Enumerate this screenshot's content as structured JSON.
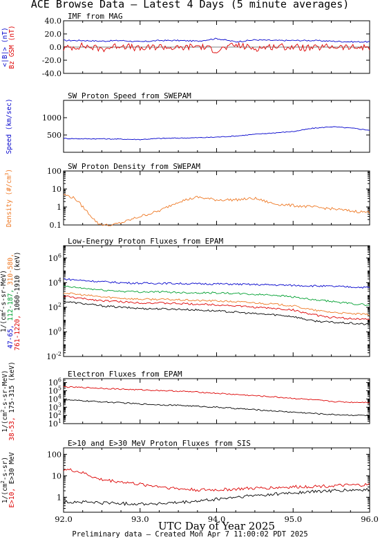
{
  "title": "ACE Browse Data – Latest 4 Days (5 minute averages)",
  "footer": "Preliminary data – Created Mon Apr  7 11:00:02 PDT 2025",
  "xlabel": "UTC Day of Year 2025",
  "xticks": [
    "92.0",
    "93.0",
    "94.0",
    "95.0",
    "96.0"
  ],
  "colors": {
    "blue": "#0000cc",
    "red": "#dd0000",
    "orange": "#ee7722",
    "green": "#00a030",
    "black": "#000000"
  },
  "chart_data": [
    {
      "type": "line",
      "title": "IMF from MAG",
      "ylim": [
        -40,
        40
      ],
      "yscale": "linear",
      "yticks": [
        "40.0",
        "20.0",
        "0.0",
        "-20.0",
        "-40.0"
      ],
      "ylabel_lines": [
        {
          "text": "<|B|> (nT)",
          "color": "#0000cc"
        },
        {
          "text": "Bz GSM (nT)",
          "color": "#dd0000"
        }
      ],
      "x": [
        92.0,
        92.25,
        92.5,
        92.75,
        93.0,
        93.25,
        93.5,
        93.75,
        94.0,
        94.25,
        94.5,
        94.75,
        95.0,
        95.25,
        95.5,
        95.75,
        96.0
      ],
      "series": [
        {
          "name": "<|B|>",
          "color": "#0000cc",
          "values": [
            10,
            10,
            9,
            10,
            8,
            10,
            10,
            9,
            13,
            8,
            11,
            10,
            10,
            10,
            9,
            8,
            8
          ]
        },
        {
          "name": "Bz GSM",
          "color": "#dd0000",
          "values": [
            -2,
            2,
            -3,
            3,
            -3,
            1,
            -2,
            2,
            -5,
            3,
            -2,
            1,
            0,
            -2,
            1,
            -1,
            0
          ]
        }
      ]
    },
    {
      "type": "line",
      "title": "SW Proton Speed from SWEPAM",
      "ylim": [
        0,
        1500
      ],
      "yscale": "linear",
      "yticks": [
        "1000",
        "500"
      ],
      "ylabel_lines": [
        {
          "text": "Speed (km/sec)",
          "color": "#0000cc"
        }
      ],
      "x": [
        92.0,
        92.25,
        92.5,
        92.75,
        93.0,
        93.25,
        93.5,
        93.75,
        94.0,
        94.25,
        94.5,
        94.75,
        95.0,
        95.25,
        95.5,
        95.75,
        96.0
      ],
      "series": [
        {
          "name": "Speed",
          "color": "#0000cc",
          "values": [
            400,
            390,
            390,
            380,
            370,
            400,
            410,
            420,
            440,
            470,
            520,
            560,
            600,
            690,
            740,
            700,
            640
          ]
        }
      ]
    },
    {
      "type": "line",
      "title": "SW Proton Density from SWEPAM",
      "ylim": [
        0.1,
        100
      ],
      "yscale": "log",
      "yticks": [
        "100",
        "10",
        "1",
        "0.1"
      ],
      "ylabel_lines": [
        {
          "text": "Density (#/cm^3)",
          "color": "#ee7722"
        }
      ],
      "x": [
        92.0,
        92.15,
        92.3,
        92.45,
        92.6,
        92.8,
        93.0,
        93.25,
        93.5,
        93.75,
        94.0,
        94.25,
        94.5,
        94.75,
        95.0,
        95.25,
        95.5,
        95.75,
        96.0
      ],
      "series": [
        {
          "name": "Density",
          "color": "#ee7722",
          "values": [
            5,
            3,
            0.6,
            0.12,
            0.09,
            0.15,
            0.3,
            0.6,
            2,
            3.5,
            2.5,
            2.5,
            3,
            1.5,
            1.2,
            1,
            0.8,
            0.6,
            0.5
          ]
        }
      ]
    },
    {
      "type": "line",
      "title": "Low-Energy Proton Fluxes from EPAM",
      "ylim": [
        0.01,
        10000000
      ],
      "yscale": "log",
      "yticks": [
        "10^6",
        "10^4",
        "10^2",
        "10^0",
        "10^-2"
      ],
      "ylabel_lines": [
        {
          "text": "1/(cm^2-s-sr-MeV)",
          "color": "#000000"
        },
        {
          "text": "47-65, 112-187, 310-580,",
          "color": "multi"
        },
        {
          "text": "761-1220, 1060-1910 (keV)",
          "color": "multi"
        }
      ],
      "x": [
        92.0,
        92.25,
        92.5,
        92.75,
        93.0,
        93.25,
        93.5,
        93.75,
        94.0,
        94.25,
        94.5,
        94.75,
        95.0,
        95.25,
        95.5,
        95.75,
        96.0
      ],
      "series": [
        {
          "name": "47-65",
          "color": "#0000cc",
          "values": [
            20000,
            15000,
            12000,
            10000,
            9000,
            9000,
            8500,
            8000,
            8000,
            7500,
            7000,
            6500,
            6000,
            5500,
            5000,
            4500,
            4000
          ]
        },
        {
          "name": "112-187",
          "color": "#00a030",
          "values": [
            5000,
            3500,
            2500,
            2000,
            1800,
            1800,
            1600,
            1500,
            1500,
            1300,
            1100,
            1000,
            700,
            400,
            300,
            200,
            150
          ]
        },
        {
          "name": "310-580",
          "color": "#ee7722",
          "values": [
            1500,
            1000,
            700,
            550,
            450,
            450,
            400,
            350,
            330,
            280,
            230,
            180,
            130,
            60,
            40,
            30,
            25
          ]
        },
        {
          "name": "761-1220",
          "color": "#dd0000",
          "values": [
            800,
            500,
            350,
            280,
            230,
            220,
            200,
            180,
            160,
            130,
            100,
            80,
            60,
            25,
            15,
            12,
            10
          ]
        },
        {
          "name": "1060-1910",
          "color": "#000000",
          "values": [
            300,
            200,
            130,
            100,
            80,
            75,
            70,
            60,
            50,
            40,
            30,
            25,
            18,
            8,
            6,
            5,
            4
          ]
        }
      ]
    },
    {
      "type": "line",
      "title": "Electron Fluxes from EPAM",
      "ylim": [
        10,
        3000000
      ],
      "yscale": "log",
      "yticks": [
        "10^6",
        "10^5",
        "10^4",
        "10^3",
        "10^2",
        "10^1"
      ],
      "ylabel_lines": [
        {
          "text": "1/(cm^2-s-sr-MeV)",
          "color": "#000000"
        },
        {
          "text": "38-53, 175-315 (keV)",
          "color": "multi"
        }
      ],
      "x": [
        92.0,
        92.25,
        92.5,
        92.75,
        93.0,
        93.25,
        93.5,
        93.75,
        94.0,
        94.25,
        94.5,
        94.75,
        95.0,
        95.25,
        95.5,
        95.75,
        96.0
      ],
      "series": [
        {
          "name": "38-53",
          "color": "#dd0000",
          "values": [
            300000,
            250000,
            200000,
            160000,
            130000,
            110000,
            90000,
            70000,
            50000,
            35000,
            25000,
            18000,
            12000,
            8000,
            5000,
            4000,
            4000
          ]
        },
        {
          "name": "175-315",
          "color": "#000000",
          "values": [
            8000,
            6000,
            4500,
            3500,
            2500,
            2000,
            1700,
            1300,
            1000,
            700,
            500,
            350,
            250,
            180,
            130,
            110,
            100
          ]
        }
      ]
    },
    {
      "type": "line",
      "title": "E>10 and E>30 MeV Proton Fluxes from SIS",
      "ylim": [
        0.2,
        200
      ],
      "yscale": "log",
      "yticks": [
        "100",
        "10",
        "1"
      ],
      "ylabel_lines": [
        {
          "text": "1/(cm^2-s-sr)",
          "color": "#000000"
        },
        {
          "text": "E>10, E>30 MeV",
          "color": "multi"
        }
      ],
      "x": [
        92.0,
        92.15,
        92.3,
        92.45,
        92.6,
        92.8,
        93.0,
        93.25,
        93.5,
        93.75,
        94.0,
        94.25,
        94.5,
        94.75,
        95.0,
        95.25,
        95.5,
        95.75,
        96.0
      ],
      "series": [
        {
          "name": "E>10",
          "color": "#dd0000",
          "values": [
            20,
            17,
            12,
            7,
            6,
            5,
            4,
            3.2,
            2.5,
            2.2,
            2.2,
            2.4,
            2.6,
            2.8,
            3,
            3.2,
            3.4,
            3.6,
            3.8
          ]
        },
        {
          "name": "E>30",
          "color": "#000000",
          "values": [
            0.6,
            0.6,
            0.6,
            0.55,
            0.55,
            0.5,
            0.5,
            0.5,
            0.55,
            0.65,
            0.8,
            1,
            1.2,
            1.4,
            1.6,
            1.8,
            2,
            2.1,
            2.2
          ]
        }
      ]
    }
  ]
}
